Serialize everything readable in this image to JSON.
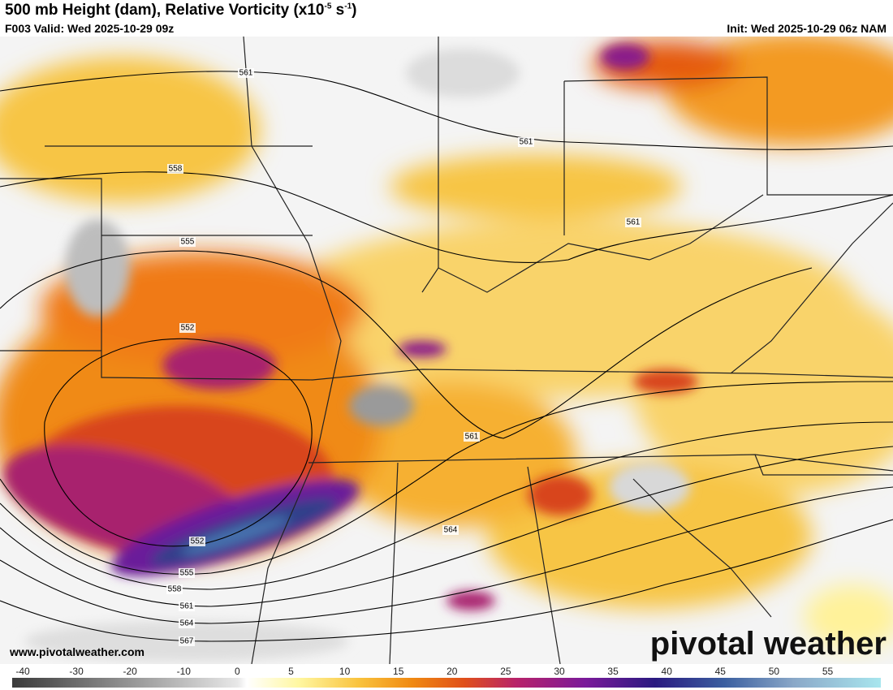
{
  "header": {
    "title": {
      "text": "500 mb Height (dam), Relative Vorticity (x10",
      "exp1": "-5",
      "unit": " s",
      "exp2": "-1",
      "close": ")"
    },
    "valid": "F003 Valid: Wed 2025-10-29 09z",
    "init": "Init: Wed 2025-10-29 06z NAM"
  },
  "contour_labels": [
    561,
    561,
    558,
    555,
    552,
    561,
    561,
    564,
    552,
    555,
    558,
    561,
    564,
    567
  ],
  "website": "www.pivotalweather.com",
  "logo": {
    "left": "pivot",
    "right": "al weather"
  },
  "colorbar": {
    "ticks": [
      -40,
      -30,
      -20,
      -10,
      0,
      5,
      10,
      15,
      20,
      25,
      30,
      35,
      40,
      45,
      50,
      55
    ]
  }
}
